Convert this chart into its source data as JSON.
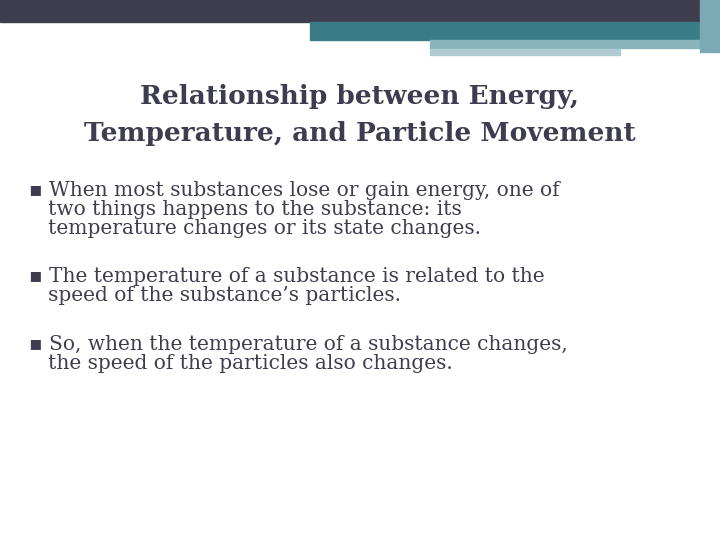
{
  "title_line1": "Relationship between Energy,",
  "title_line2": "Temperature, and Particle Movement",
  "title_color": "#3d3d4f",
  "bullet_color": "#3d3d4f",
  "bg_color": "#ffffff",
  "header_dark_color": "#3d3d4f",
  "header_teal_color": "#3a7d87",
  "header_light1_color": "#8ab4bc",
  "header_light2_color": "#b0ccd2",
  "header_right_color": "#7aaab4",
  "bullet1_lines": [
    "▪ When most substances lose or gain energy, one of",
    "   two things happens to the substance: its",
    "   temperature changes or its state changes."
  ],
  "bullet2_lines": [
    "▪ The temperature of a substance is related to the",
    "   speed of the substance’s particles."
  ],
  "bullet3_lines": [
    "▪ So, when the temperature of a substance changes,",
    "   the speed of the particles also changes."
  ]
}
